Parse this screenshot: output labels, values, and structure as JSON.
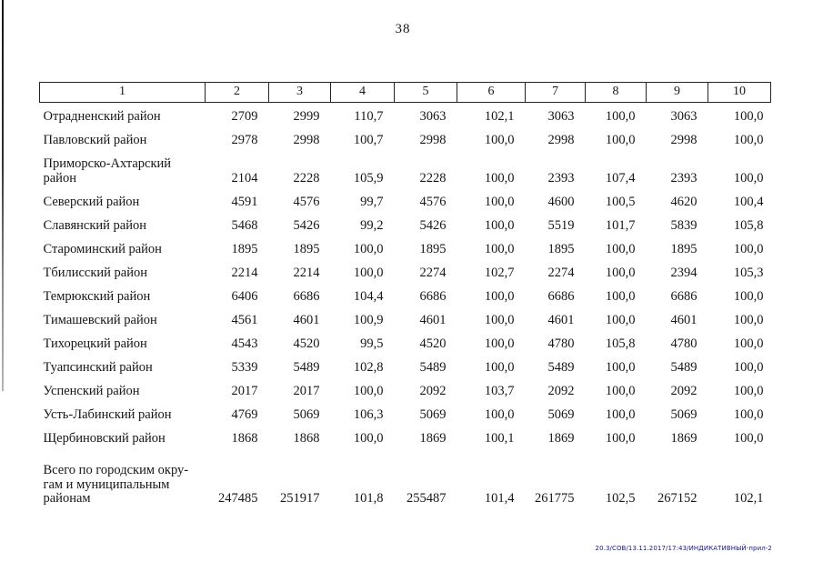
{
  "page_number": "38",
  "table": {
    "column_headers": [
      "1",
      "2",
      "3",
      "4",
      "5",
      "6",
      "7",
      "8",
      "9",
      "10"
    ],
    "rows": [
      {
        "name": "Отрадненский район",
        "values": [
          "2709",
          "2999",
          "110,7",
          "3063",
          "102,1",
          "3063",
          "100,0",
          "3063",
          "100,0"
        ]
      },
      {
        "name": "Павловский район",
        "values": [
          "2978",
          "2998",
          "100,7",
          "2998",
          "100,0",
          "2998",
          "100,0",
          "2998",
          "100,0"
        ]
      },
      {
        "name": "Приморско-Ахтарский\nрайон",
        "values": [
          "2104",
          "2228",
          "105,9",
          "2228",
          "100,0",
          "2393",
          "107,4",
          "2393",
          "100,0"
        ]
      },
      {
        "name": "Северский район",
        "values": [
          "4591",
          "4576",
          "99,7",
          "4576",
          "100,0",
          "4600",
          "100,5",
          "4620",
          "100,4"
        ]
      },
      {
        "name": "Славянский район",
        "values": [
          "5468",
          "5426",
          "99,2",
          "5426",
          "100,0",
          "5519",
          "101,7",
          "5839",
          "105,8"
        ]
      },
      {
        "name": "Староминский район",
        "values": [
          "1895",
          "1895",
          "100,0",
          "1895",
          "100,0",
          "1895",
          "100,0",
          "1895",
          "100,0"
        ]
      },
      {
        "name": "Тбилисский район",
        "values": [
          "2214",
          "2214",
          "100,0",
          "2274",
          "102,7",
          "2274",
          "100,0",
          "2394",
          "105,3"
        ]
      },
      {
        "name": "Темрюкский район",
        "values": [
          "6406",
          "6686",
          "104,4",
          "6686",
          "100,0",
          "6686",
          "100,0",
          "6686",
          "100,0"
        ]
      },
      {
        "name": "Тимашевский район",
        "values": [
          "4561",
          "4601",
          "100,9",
          "4601",
          "100,0",
          "4601",
          "100,0",
          "4601",
          "100,0"
        ]
      },
      {
        "name": "Тихорецкий район",
        "values": [
          "4543",
          "4520",
          "99,5",
          "4520",
          "100,0",
          "4780",
          "105,8",
          "4780",
          "100,0"
        ]
      },
      {
        "name": "Туапсинский район",
        "values": [
          "5339",
          "5489",
          "102,8",
          "5489",
          "100,0",
          "5489",
          "100,0",
          "5489",
          "100,0"
        ]
      },
      {
        "name": "Успенский район",
        "values": [
          "2017",
          "2017",
          "100,0",
          "2092",
          "103,7",
          "2092",
          "100,0",
          "2092",
          "100,0"
        ]
      },
      {
        "name": "Усть-Лабинский район",
        "values": [
          "4769",
          "5069",
          "106,3",
          "5069",
          "100,0",
          "5069",
          "100,0",
          "5069",
          "100,0"
        ]
      },
      {
        "name": "Щербиновский район",
        "values": [
          "1868",
          "1868",
          "100,0",
          "1869",
          "100,1",
          "1869",
          "100,0",
          "1869",
          "100,0"
        ]
      },
      {
        "name": "Всего по городским окру-\nгам и муниципальным\nрайонам",
        "total": true,
        "values": [
          "247485",
          "251917",
          "101,8",
          "255487",
          "101,4",
          "261775",
          "102,5",
          "267152",
          "102,1"
        ]
      }
    ]
  },
  "footer_stamp": "20.3/СОВ/13.11.2017/17:43/ИНДИКАТИВНЫЙ-прил-2"
}
